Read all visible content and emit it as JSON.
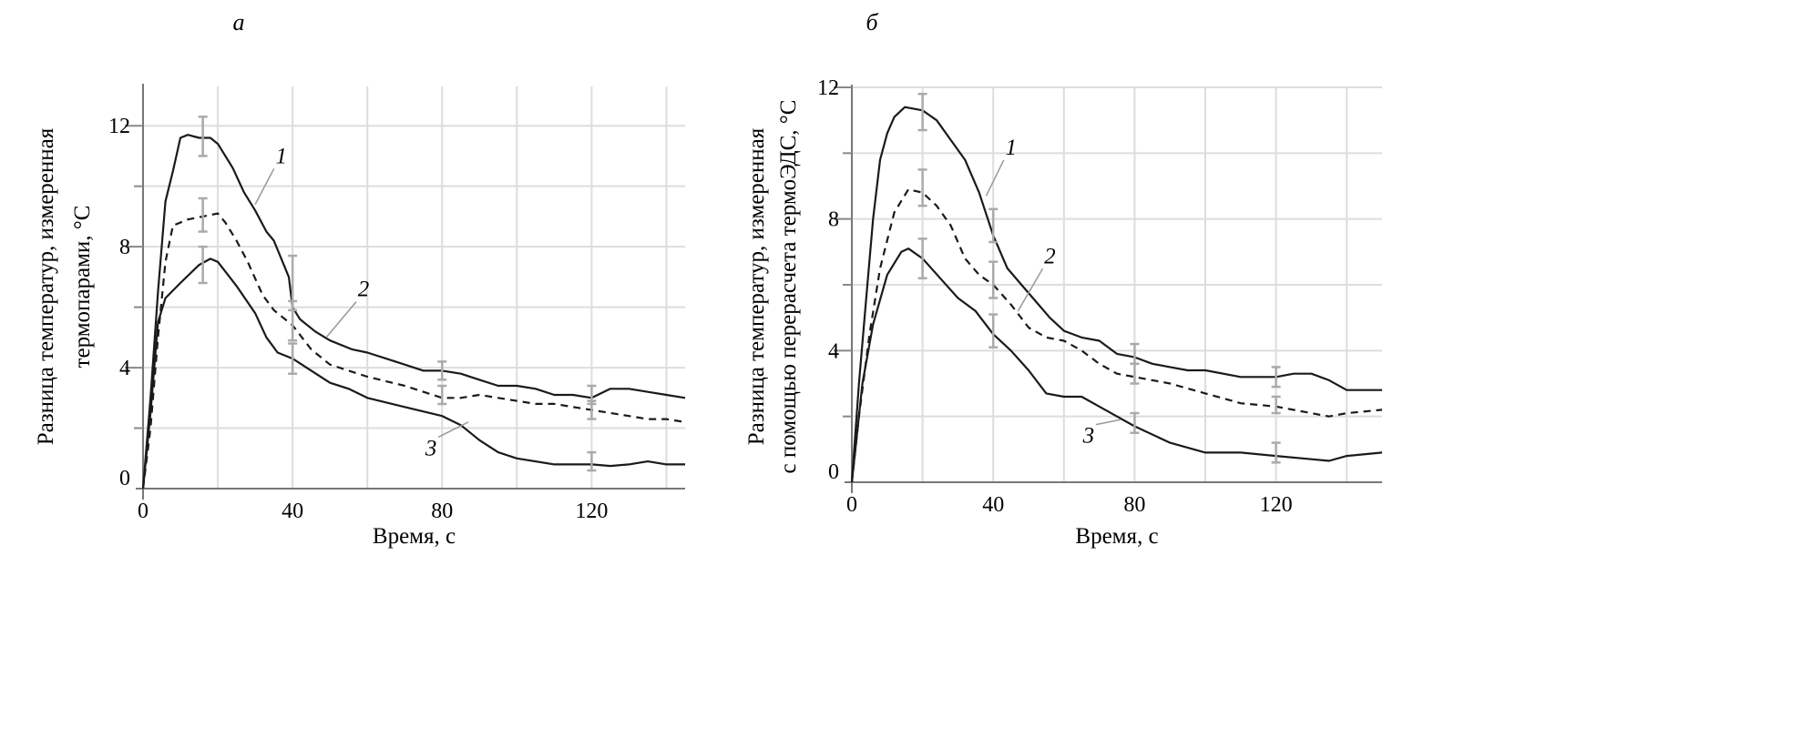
{
  "chart_data": [
    {
      "type": "line",
      "panel": "а",
      "xlabel": "Время, с",
      "ylabel": [
        "Разница температур, измеренная",
        "термопарами, °С"
      ],
      "xlim": [
        0,
        145
      ],
      "ylim": [
        0,
        13.3
      ],
      "xticks": [
        0,
        40,
        80,
        120
      ],
      "yticks": [
        0,
        4,
        8,
        12
      ],
      "grid": {
        "x_step": 20,
        "y_step": 2
      },
      "series": [
        {
          "name": "1",
          "style": "solid",
          "x": [
            0,
            2,
            4,
            6,
            8,
            10,
            12,
            15,
            18,
            20,
            24,
            27,
            30,
            33,
            35,
            37,
            39,
            40,
            42,
            46,
            50,
            56,
            60,
            65,
            70,
            75,
            80,
            85,
            90,
            95,
            100,
            105,
            110,
            115,
            120,
            125,
            130,
            135,
            140,
            145
          ],
          "y": [
            0,
            3,
            6.5,
            9.5,
            10.5,
            11.6,
            11.7,
            11.6,
            11.6,
            11.4,
            10.6,
            9.8,
            9.2,
            8.5,
            8.2,
            7.6,
            7.0,
            6.0,
            5.6,
            5.2,
            4.9,
            4.6,
            4.5,
            4.3,
            4.1,
            3.9,
            3.9,
            3.8,
            3.6,
            3.4,
            3.4,
            3.3,
            3.1,
            3.1,
            3.0,
            3.3,
            3.3,
            3.2,
            3.1,
            3.0
          ],
          "errors": [
            {
              "x": 16,
              "lo": 11.0,
              "hi": 12.3
            },
            {
              "x": 40,
              "lo": 5.9,
              "hi": 7.7
            },
            {
              "x": 80,
              "lo": 3.6,
              "hi": 4.2
            },
            {
              "x": 120,
              "lo": 2.8,
              "hi": 3.4
            }
          ],
          "label_at": [
            36,
            10.7
          ],
          "label_to": [
            30,
            9.4
          ]
        },
        {
          "name": "2",
          "style": "dashed",
          "x": [
            0,
            2,
            4,
            6,
            8,
            12,
            16,
            20,
            22,
            25,
            28,
            32,
            35,
            38,
            40,
            45,
            50,
            55,
            60,
            70,
            75,
            80,
            85,
            90,
            95,
            100,
            105,
            110,
            115,
            120,
            125,
            130,
            135,
            140,
            145
          ],
          "y": [
            0,
            2,
            5,
            7.5,
            8.7,
            8.9,
            9.0,
            9.1,
            8.8,
            8.2,
            7.5,
            6.4,
            5.9,
            5.6,
            5.4,
            4.6,
            4.1,
            3.9,
            3.7,
            3.4,
            3.2,
            3.0,
            3.0,
            3.1,
            3.0,
            2.9,
            2.8,
            2.8,
            2.7,
            2.6,
            2.5,
            2.4,
            2.3,
            2.3,
            2.2
          ],
          "errors": [
            {
              "x": 16,
              "lo": 8.5,
              "hi": 9.6
            },
            {
              "x": 40,
              "lo": 4.9,
              "hi": 6.2
            },
            {
              "x": 80,
              "lo": 2.8,
              "hi": 3.4
            },
            {
              "x": 120,
              "lo": 2.3,
              "hi": 2.9
            }
          ],
          "label_at": [
            58,
            6.3
          ],
          "label_to": [
            49,
            5.0
          ]
        },
        {
          "name": "3",
          "style": "solid",
          "x": [
            0,
            2,
            4,
            6,
            10,
            15,
            18,
            20,
            25,
            30,
            33,
            36,
            40,
            45,
            50,
            55,
            60,
            70,
            80,
            85,
            90,
            95,
            100,
            110,
            120,
            125,
            130,
            135,
            140,
            145
          ],
          "y": [
            0,
            2.5,
            5.5,
            6.3,
            6.8,
            7.4,
            7.6,
            7.5,
            6.7,
            5.8,
            5.0,
            4.5,
            4.3,
            3.9,
            3.5,
            3.3,
            3.0,
            2.7,
            2.4,
            2.1,
            1.6,
            1.2,
            1.0,
            0.8,
            0.8,
            0.75,
            0.8,
            0.9,
            0.8,
            0.8
          ],
          "errors": [
            {
              "x": 16,
              "lo": 6.8,
              "hi": 8.0
            },
            {
              "x": 40,
              "lo": 3.8,
              "hi": 4.8
            },
            {
              "x": 120,
              "lo": 0.6,
              "hi": 1.2
            }
          ],
          "label_at": [
            78,
            1.1
          ],
          "label_to": [
            87,
            2.2
          ]
        }
      ]
    },
    {
      "type": "line",
      "panel": "б",
      "xlabel": "Время, с",
      "ylabel": [
        "Разница температур, измеренная",
        "с помощью перерасчета термоЭДС, °С"
      ],
      "xlim": [
        0,
        150
      ],
      "ylim": [
        0,
        12
      ],
      "xticks": [
        0,
        40,
        80,
        120
      ],
      "yticks": [
        0,
        4,
        8,
        12
      ],
      "grid": {
        "x_step": 20,
        "y_step": 2
      },
      "series": [
        {
          "name": "1",
          "style": "solid",
          "x": [
            0,
            2,
            4,
            6,
            8,
            10,
            12,
            15,
            20,
            24,
            28,
            32,
            36,
            40,
            44,
            48,
            52,
            56,
            60,
            65,
            70,
            75,
            80,
            85,
            90,
            95,
            100,
            110,
            120,
            125,
            130,
            135,
            140,
            145,
            150
          ],
          "y": [
            0,
            3,
            5.5,
            8,
            9.8,
            10.6,
            11.1,
            11.4,
            11.3,
            11.0,
            10.4,
            9.8,
            8.8,
            7.5,
            6.5,
            6.0,
            5.5,
            5.0,
            4.6,
            4.4,
            4.3,
            3.9,
            3.8,
            3.6,
            3.5,
            3.4,
            3.4,
            3.2,
            3.2,
            3.3,
            3.3,
            3.1,
            2.8,
            2.8,
            2.8
          ],
          "errors": [
            {
              "x": 20,
              "lo": 10.7,
              "hi": 11.8
            },
            {
              "x": 40,
              "lo": 7.3,
              "hi": 8.3
            },
            {
              "x": 80,
              "lo": 3.6,
              "hi": 4.2
            },
            {
              "x": 120,
              "lo": 2.9,
              "hi": 3.5
            }
          ],
          "label_at": [
            44,
            9.9
          ],
          "label_to": [
            38,
            8.7
          ]
        },
        {
          "name": "2",
          "style": "dashed",
          "x": [
            0,
            2,
            5,
            8,
            12,
            16,
            20,
            24,
            28,
            32,
            36,
            40,
            45,
            50,
            55,
            60,
            65,
            70,
            75,
            80,
            90,
            100,
            110,
            120,
            130,
            135,
            140,
            150
          ],
          "y": [
            0,
            2,
            4.5,
            6.5,
            8.2,
            8.9,
            8.8,
            8.4,
            7.8,
            6.8,
            6.3,
            6.0,
            5.4,
            4.7,
            4.4,
            4.3,
            4.0,
            3.6,
            3.3,
            3.2,
            3.0,
            2.7,
            2.4,
            2.3,
            2.1,
            2.0,
            2.1,
            2.2
          ],
          "errors": [
            {
              "x": 20,
              "lo": 8.4,
              "hi": 9.5
            },
            {
              "x": 40,
              "lo": 5.6,
              "hi": 6.7
            },
            {
              "x": 80,
              "lo": 3.0,
              "hi": 3.6
            },
            {
              "x": 120,
              "lo": 2.1,
              "hi": 2.6
            }
          ],
          "label_at": [
            55,
            6.6
          ],
          "label_to": [
            47,
            5.2
          ]
        },
        {
          "name": "3",
          "style": "solid",
          "x": [
            0,
            3,
            6,
            10,
            14,
            16,
            20,
            25,
            30,
            35,
            40,
            45,
            50,
            55,
            60,
            65,
            70,
            75,
            80,
            90,
            100,
            110,
            120,
            130,
            135,
            140,
            150
          ],
          "y": [
            0,
            3,
            4.8,
            6.3,
            7.0,
            7.1,
            6.8,
            6.2,
            5.6,
            5.2,
            4.5,
            4.0,
            3.4,
            2.7,
            2.6,
            2.6,
            2.3,
            2.0,
            1.7,
            1.2,
            0.9,
            0.9,
            0.8,
            0.7,
            0.65,
            0.8,
            0.9
          ],
          "errors": [
            {
              "x": 20,
              "lo": 6.2,
              "hi": 7.4
            },
            {
              "x": 40,
              "lo": 4.1,
              "hi": 5.1
            },
            {
              "x": 80,
              "lo": 1.5,
              "hi": 2.1
            },
            {
              "x": 120,
              "lo": 0.6,
              "hi": 1.2
            }
          ],
          "label_at": [
            68,
            1.2
          ],
          "label_to": [
            76,
            1.9
          ]
        }
      ]
    }
  ]
}
